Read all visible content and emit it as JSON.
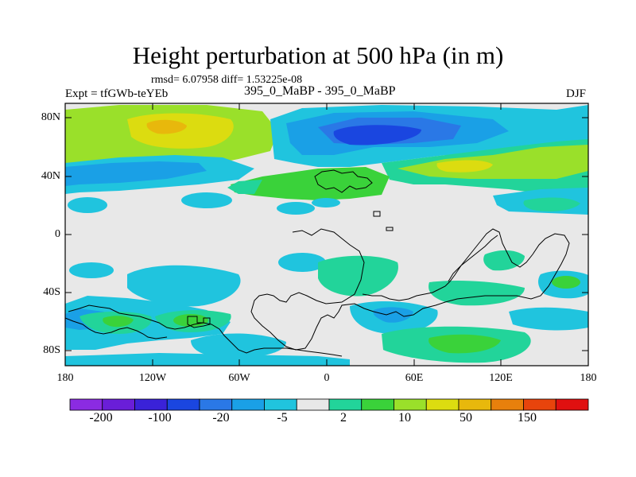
{
  "title": "Height perturbation at 500 hPa (in m)",
  "stats": "rmsd= 6.07958 diff= 1.53225e-08",
  "experiment": "Expt = tfGWb-teYEb",
  "subtitle": "395_0_MaBP - 395_0_MaBP",
  "season": "DJF",
  "axes": {
    "y_ticks": [
      "80N",
      "40N",
      "0",
      "40S",
      "80S"
    ],
    "x_ticks": [
      "180",
      "120W",
      "60W",
      "0",
      "60E",
      "120E",
      "180"
    ]
  },
  "colorbar": {
    "colors": [
      "#8b2be2",
      "#6a1ed8",
      "#3a22d8",
      "#1a46e0",
      "#2a78e6",
      "#1aa0e6",
      "#20c4de",
      "#e8e8e8",
      "#22d49a",
      "#3ad23a",
      "#9ae02a",
      "#dcdc10",
      "#e8b80c",
      "#e8800c",
      "#e8440c",
      "#e01010"
    ],
    "labels": [
      "-200",
      "-100",
      "-20",
      "-5",
      "2",
      "10",
      "50",
      "150"
    ]
  },
  "map_layers": {
    "background": "#e8e8e8",
    "coast": "#000000"
  }
}
